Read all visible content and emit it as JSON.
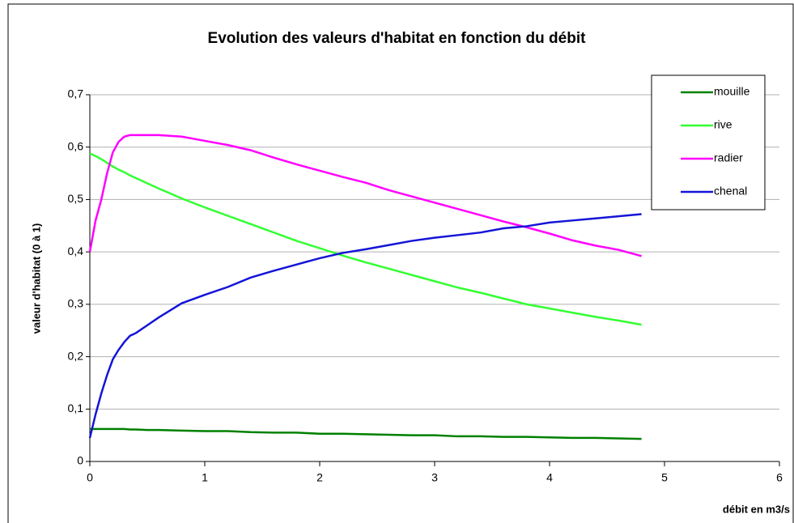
{
  "chart_data": {
    "type": "line",
    "title": "Evolution des valeurs d'habitat en fonction du débit",
    "x_label": "débit en m3/s",
    "y_label": "valeur d'habitat (0 à 1)",
    "x": [
      0,
      0.05,
      0.1,
      0.15,
      0.2,
      0.25,
      0.3,
      0.35,
      0.4,
      0.5,
      0.6,
      0.8,
      1,
      1.2,
      1.4,
      1.6,
      1.8,
      2,
      2.2,
      2.4,
      2.6,
      2.8,
      3,
      3.2,
      3.4,
      3.6,
      3.8,
      4,
      4.2,
      4.4,
      4.6,
      4.8
    ],
    "series": [
      {
        "name": "mouille",
        "color": "#008000",
        "values": [
          0.062,
          0.062,
          0.062,
          0.062,
          0.062,
          0.062,
          0.062,
          0.061,
          0.061,
          0.06,
          0.06,
          0.059,
          0.058,
          0.058,
          0.056,
          0.055,
          0.055,
          0.053,
          0.053,
          0.052,
          0.051,
          0.05,
          0.05,
          0.048,
          0.048,
          0.047,
          0.047,
          0.046,
          0.045,
          0.045,
          0.044,
          0.043
        ]
      },
      {
        "name": "rive",
        "color": "#33ff33",
        "values": [
          0.588,
          0.583,
          0.577,
          0.57,
          0.563,
          0.557,
          0.552,
          0.546,
          0.541,
          0.531,
          0.521,
          0.502,
          0.485,
          0.469,
          0.453,
          0.437,
          0.421,
          0.407,
          0.393,
          0.38,
          0.368,
          0.356,
          0.344,
          0.332,
          0.322,
          0.311,
          0.3,
          0.292,
          0.284,
          0.276,
          0.269,
          0.261
        ]
      },
      {
        "name": "radier",
        "color": "#ff00ff",
        "values": [
          0.4,
          0.46,
          0.5,
          0.55,
          0.59,
          0.61,
          0.62,
          0.623,
          0.623,
          0.623,
          0.623,
          0.62,
          0.612,
          0.604,
          0.594,
          0.58,
          0.567,
          0.555,
          0.543,
          0.532,
          0.518,
          0.506,
          0.494,
          0.482,
          0.47,
          0.458,
          0.447,
          0.435,
          0.422,
          0.412,
          0.404,
          0.392
        ]
      },
      {
        "name": "chenal",
        "color": "#1414d8",
        "values": [
          0.045,
          0.09,
          0.13,
          0.165,
          0.195,
          0.213,
          0.228,
          0.24,
          0.245,
          0.26,
          0.275,
          0.302,
          0.318,
          0.333,
          0.351,
          0.364,
          0.376,
          0.388,
          0.398,
          0.405,
          0.413,
          0.421,
          0.427,
          0.432,
          0.437,
          0.445,
          0.449,
          0.456,
          0.46,
          0.464,
          0.468,
          0.472
        ]
      }
    ],
    "xlim": [
      0,
      6
    ],
    "xticks": [
      0,
      1,
      2,
      3,
      4,
      5,
      6
    ],
    "ylim": [
      0,
      0.7
    ],
    "yticks": [
      0,
      {
        "value": 0.1,
        "label": "0,1"
      },
      {
        "value": 0.2,
        "label": "0,2"
      },
      {
        "value": 0.3,
        "label": "0,3"
      },
      {
        "value": 0.4,
        "label": "0,4"
      },
      {
        "value": 0.5,
        "label": "0,5"
      },
      {
        "value": 0.6,
        "label": "0,6"
      },
      {
        "value": 0.7,
        "label": "0,7"
      }
    ],
    "grid": true,
    "legend": "upper right"
  }
}
